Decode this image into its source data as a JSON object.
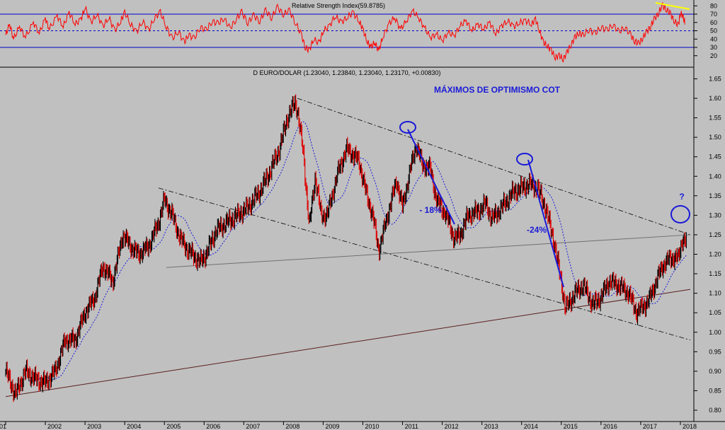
{
  "chart_data": [
    {
      "type": "line",
      "title": "Relative Strength Index(59.8785)",
      "ylim": [
        10,
        90
      ],
      "y_ticks": [
        "80",
        "70",
        "60",
        "50",
        "40",
        "30",
        "20"
      ],
      "levels": [
        30,
        50,
        70
      ],
      "series": [
        {
          "values": [
            [
              2001.0,
              45
            ],
            [
              2001.1,
              58
            ],
            [
              2001.2,
              40
            ],
            [
              2001.35,
              55
            ],
            [
              2001.5,
              42
            ],
            [
              2001.7,
              60
            ],
            [
              2001.85,
              47
            ],
            [
              2002.0,
              65
            ],
            [
              2002.1,
              52
            ],
            [
              2002.3,
              68
            ],
            [
              2002.45,
              55
            ],
            [
              2002.6,
              72
            ],
            [
              2002.75,
              58
            ],
            [
              2002.9,
              64
            ],
            [
              2003.0,
              78
            ],
            [
              2003.15,
              60
            ],
            [
              2003.3,
              70
            ],
            [
              2003.45,
              55
            ],
            [
              2003.6,
              66
            ],
            [
              2003.75,
              50
            ],
            [
              2003.9,
              62
            ],
            [
              2004.0,
              72
            ],
            [
              2004.15,
              58
            ],
            [
              2004.3,
              48
            ],
            [
              2004.45,
              62
            ],
            [
              2004.6,
              50
            ],
            [
              2004.75,
              66
            ],
            [
              2004.9,
              72
            ],
            [
              2005.05,
              55
            ],
            [
              2005.2,
              40
            ],
            [
              2005.35,
              50
            ],
            [
              2005.5,
              35
            ],
            [
              2005.6,
              46
            ],
            [
              2005.75,
              40
            ],
            [
              2005.9,
              55
            ],
            [
              2006.05,
              50
            ],
            [
              2006.2,
              62
            ],
            [
              2006.35,
              58
            ],
            [
              2006.5,
              66
            ],
            [
              2006.65,
              52
            ],
            [
              2006.8,
              64
            ],
            [
              2006.95,
              72
            ],
            [
              2007.1,
              60
            ],
            [
              2007.25,
              68
            ],
            [
              2007.4,
              62
            ],
            [
              2007.55,
              74
            ],
            [
              2007.7,
              66
            ],
            [
              2007.85,
              78
            ],
            [
              2008.0,
              70
            ],
            [
              2008.15,
              74
            ],
            [
              2008.3,
              60
            ],
            [
              2008.45,
              45
            ],
            [
              2008.55,
              30
            ],
            [
              2008.65,
              26
            ],
            [
              2008.75,
              40
            ],
            [
              2008.9,
              35
            ],
            [
              2009.0,
              50
            ],
            [
              2009.15,
              55
            ],
            [
              2009.3,
              68
            ],
            [
              2009.45,
              60
            ],
            [
              2009.6,
              66
            ],
            [
              2009.75,
              72
            ],
            [
              2009.9,
              62
            ],
            [
              2010.0,
              52
            ],
            [
              2010.1,
              38
            ],
            [
              2010.2,
              30
            ],
            [
              2010.3,
              36
            ],
            [
              2010.4,
              26
            ],
            [
              2010.5,
              42
            ],
            [
              2010.65,
              58
            ],
            [
              2010.8,
              66
            ],
            [
              2010.95,
              52
            ],
            [
              2011.1,
              62
            ],
            [
              2011.25,
              74
            ],
            [
              2011.4,
              66
            ],
            [
              2011.55,
              54
            ],
            [
              2011.7,
              42
            ],
            [
              2011.85,
              46
            ],
            [
              2012.0,
              38
            ],
            [
              2012.15,
              48
            ],
            [
              2012.3,
              44
            ],
            [
              2012.45,
              56
            ],
            [
              2012.6,
              62
            ],
            [
              2012.75,
              50
            ],
            [
              2012.9,
              58
            ],
            [
              2013.05,
              52
            ],
            [
              2013.2,
              60
            ],
            [
              2013.35,
              46
            ],
            [
              2013.5,
              56
            ],
            [
              2013.65,
              62
            ],
            [
              2013.8,
              55
            ],
            [
              2013.95,
              60
            ],
            [
              2014.1,
              62
            ],
            [
              2014.25,
              58
            ],
            [
              2014.35,
              64
            ],
            [
              2014.45,
              50
            ],
            [
              2014.55,
              36
            ],
            [
              2014.65,
              32
            ],
            [
              2014.75,
              26
            ],
            [
              2014.85,
              18
            ],
            [
              2014.95,
              20
            ],
            [
              2015.05,
              16
            ],
            [
              2015.15,
              24
            ],
            [
              2015.25,
              34
            ],
            [
              2015.35,
              42
            ],
            [
              2015.45,
              48
            ],
            [
              2015.55,
              44
            ],
            [
              2015.7,
              52
            ],
            [
              2015.85,
              46
            ],
            [
              2016.0,
              55
            ],
            [
              2016.15,
              50
            ],
            [
              2016.3,
              58
            ],
            [
              2016.45,
              48
            ],
            [
              2016.6,
              55
            ],
            [
              2016.75,
              44
            ],
            [
              2016.85,
              38
            ],
            [
              2016.95,
              34
            ],
            [
              2017.05,
              42
            ],
            [
              2017.15,
              48
            ],
            [
              2017.25,
              56
            ],
            [
              2017.35,
              64
            ],
            [
              2017.45,
              72
            ],
            [
              2017.55,
              80
            ],
            [
              2017.65,
              76
            ],
            [
              2017.75,
              70
            ],
            [
              2017.85,
              62
            ],
            [
              2017.95,
              56
            ],
            [
              2018.0,
              72
            ],
            [
              2018.07,
              66
            ],
            [
              2018.12,
              60
            ]
          ]
        }
      ]
    },
    {
      "type": "bar",
      "title": "D EURO/DOLAR (1.23040, 1.23840, 1.23040, 1.23170, +0.00830)",
      "xlim": [
        2001.0,
        2018.25
      ],
      "ylim": [
        0.78,
        1.68
      ],
      "x_ticks": [
        "01",
        "2002",
        "2003",
        "2004",
        "2005",
        "2006",
        "2007",
        "2008",
        "2009",
        "2010",
        "2011",
        "2012",
        "2013",
        "2014",
        "2015",
        "2016",
        "2017",
        "2018"
      ],
      "y_ticks": [
        "1.65",
        "1.60",
        "1.55",
        "1.50",
        "1.45",
        "1.40",
        "1.35",
        "1.30",
        "1.25",
        "1.20",
        "1.15",
        "1.10",
        "1.05",
        "1.00",
        "0.95",
        "0.90",
        "0.85",
        "0.80"
      ],
      "anchors": [
        [
          2001.0,
          0.9
        ],
        [
          2001.25,
          0.84
        ],
        [
          2001.5,
          0.9
        ],
        [
          2001.75,
          0.88
        ],
        [
          2002.0,
          0.87
        ],
        [
          2002.25,
          0.9
        ],
        [
          2002.5,
          0.98
        ],
        [
          2002.75,
          0.98
        ],
        [
          2003.0,
          1.05
        ],
        [
          2003.25,
          1.09
        ],
        [
          2003.45,
          1.17
        ],
        [
          2003.7,
          1.13
        ],
        [
          2003.95,
          1.25
        ],
        [
          2004.15,
          1.22
        ],
        [
          2004.35,
          1.2
        ],
        [
          2004.6,
          1.22
        ],
        [
          2004.85,
          1.28
        ],
        [
          2005.0,
          1.34
        ],
        [
          2005.2,
          1.3
        ],
        [
          2005.4,
          1.24
        ],
        [
          2005.6,
          1.21
        ],
        [
          2005.9,
          1.18
        ],
        [
          2006.05,
          1.2
        ],
        [
          2006.3,
          1.26
        ],
        [
          2006.55,
          1.28
        ],
        [
          2006.85,
          1.3
        ],
        [
          2007.1,
          1.32
        ],
        [
          2007.4,
          1.36
        ],
        [
          2007.65,
          1.41
        ],
        [
          2007.9,
          1.47
        ],
        [
          2008.1,
          1.55
        ],
        [
          2008.3,
          1.59
        ],
        [
          2008.35,
          1.57
        ],
        [
          2008.5,
          1.46
        ],
        [
          2008.65,
          1.27
        ],
        [
          2008.8,
          1.4
        ],
        [
          2008.95,
          1.3
        ],
        [
          2009.1,
          1.3
        ],
        [
          2009.4,
          1.42
        ],
        [
          2009.6,
          1.47
        ],
        [
          2009.9,
          1.44
        ],
        [
          2010.1,
          1.35
        ],
        [
          2010.25,
          1.3
        ],
        [
          2010.4,
          1.21
        ],
        [
          2010.6,
          1.29
        ],
        [
          2010.85,
          1.39
        ],
        [
          2011.0,
          1.32
        ],
        [
          2011.2,
          1.42
        ],
        [
          2011.35,
          1.48
        ],
        [
          2011.5,
          1.43
        ],
        [
          2011.7,
          1.42
        ],
        [
          2011.85,
          1.34
        ],
        [
          2012.1,
          1.3
        ],
        [
          2012.3,
          1.24
        ],
        [
          2012.45,
          1.25
        ],
        [
          2012.65,
          1.3
        ],
        [
          2012.9,
          1.31
        ],
        [
          2013.1,
          1.33
        ],
        [
          2013.25,
          1.29
        ],
        [
          2013.5,
          1.32
        ],
        [
          2013.8,
          1.36
        ],
        [
          2014.0,
          1.37
        ],
        [
          2014.2,
          1.38
        ],
        [
          2014.4,
          1.37
        ],
        [
          2014.6,
          1.32
        ],
        [
          2014.8,
          1.24
        ],
        [
          2015.0,
          1.13
        ],
        [
          2015.1,
          1.06
        ],
        [
          2015.35,
          1.1
        ],
        [
          2015.55,
          1.12
        ],
        [
          2015.8,
          1.07
        ],
        [
          2016.0,
          1.09
        ],
        [
          2016.2,
          1.13
        ],
        [
          2016.45,
          1.12
        ],
        [
          2016.7,
          1.1
        ],
        [
          2016.9,
          1.05
        ],
        [
          2017.0,
          1.06
        ],
        [
          2017.2,
          1.08
        ],
        [
          2017.35,
          1.12
        ],
        [
          2017.55,
          1.17
        ],
        [
          2017.75,
          1.19
        ],
        [
          2017.95,
          1.19
        ],
        [
          2018.05,
          1.24
        ],
        [
          2018.15,
          1.23
        ]
      ],
      "colors": {
        "up": "#000000",
        "down": "#e00000"
      },
      "trendlines": [
        {
          "from": [
            2008.35,
            1.6
          ],
          "to": [
            2018.25,
            1.25
          ],
          "style": "dashdot"
        },
        {
          "from": [
            2004.85,
            1.37
          ],
          "to": [
            2018.25,
            0.98
          ],
          "style": "dashdot"
        },
        {
          "from": [
            2005.05,
            1.166
          ],
          "to": [
            2018.25,
            1.25
          ],
          "style": "solid",
          "color": "#707070"
        },
        {
          "from": [
            2001.0,
            0.835
          ],
          "to": [
            2018.25,
            1.11
          ],
          "style": "solid",
          "color": "#5a1e1e"
        }
      ],
      "annotations": {
        "heading": "MÁXIMOS DE OPTIMISMO COT",
        "drop_1": "- 18%",
        "drop_2": "-24%",
        "question": "?"
      },
      "highlight_color": "#1a1ad8"
    }
  ]
}
